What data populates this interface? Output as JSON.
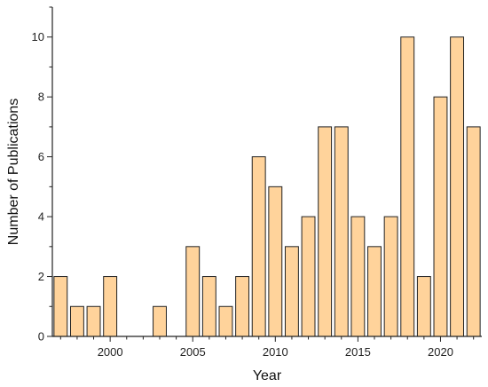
{
  "chart_data": {
    "type": "bar",
    "xlabel": "Year",
    "ylabel": "Number of Publications",
    "xlim": [
      1996.5,
      2022.5
    ],
    "ylim": [
      0,
      11
    ],
    "x_ticks": [
      2000,
      2005,
      2010,
      2015,
      2020
    ],
    "y_ticks": [
      0,
      2,
      4,
      6,
      8,
      10
    ],
    "grid": false,
    "bar_color": "#FFD39B",
    "bar_edge_color": "#222222",
    "x": [
      1997,
      1998,
      1999,
      2000,
      2001,
      2002,
      2003,
      2004,
      2005,
      2006,
      2007,
      2008,
      2009,
      2010,
      2011,
      2012,
      2013,
      2014,
      2015,
      2016,
      2017,
      2018,
      2019,
      2020,
      2021,
      2022
    ],
    "values": [
      2,
      1,
      1,
      2,
      0,
      0,
      1,
      0,
      3,
      2,
      1,
      2,
      6,
      5,
      3,
      4,
      7,
      7,
      4,
      3,
      4,
      10,
      2,
      8,
      10,
      7
    ]
  }
}
